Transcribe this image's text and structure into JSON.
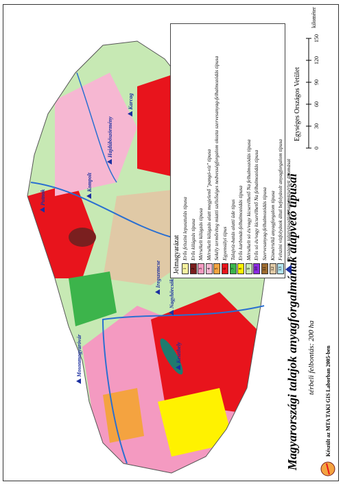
{
  "title": "Magyarországi talajok anyagforgalmának alapvető típusai",
  "subtitle": "térbeli felbontás: 200 ha",
  "projection": "Egységes Országos Vetület",
  "scale": {
    "ticks": [
      0,
      30,
      60,
      90,
      120,
      150
    ],
    "unit": "kilométer"
  },
  "credit": "Készült az MTA TAKI GIS Laborban 2005-ben",
  "legend": {
    "title": "Jelmagyarázat",
    "items": [
      {
        "number": 1,
        "label": "Erős felszíni lepusztulás típusa",
        "color": "#f7f3a0"
      },
      {
        "number": 2,
        "label": "Erős kilúgzás típusa",
        "color": "#7a1f1f"
      },
      {
        "number": 3,
        "label": "Mérsékelt kilúgzás típusa",
        "color": "#f49ac1"
      },
      {
        "number": 4,
        "label": "Mérsékelt kilúgzás alatt megjelenő \"pangó-víz\" típusa",
        "color": "#f6b7d2"
      },
      {
        "number": 5,
        "label": "Sekély termőréteg miatti szélsőséges nedvességforgalom okozta szervesanyag-felhalmozódás típusa",
        "color": "#f4a340"
      },
      {
        "number": 6,
        "label": "Egyensúlyi típus",
        "color": "#e8141c"
      },
      {
        "number": 7,
        "label": "Talajvíz-hatás alatti üde típus",
        "color": "#3cb44b"
      },
      {
        "number": 8,
        "label": "Erős karbonát-felhalmozódás típusa",
        "color": "#fff200"
      },
      {
        "number": 9,
        "label": "Mérsékelt só és/vagy kicserélhető Na felhalmozódás típusa",
        "color": "#c7e9b4"
      },
      {
        "number": 10,
        "label": "Erős só és/vagy kicserélhető Na felhalmozódás típusa",
        "color": "#8b2be2"
      },
      {
        "number": 11,
        "label": "Szervesanyag-felhalmozódás típusa",
        "color": "#9c6b30"
      },
      {
        "number": 12,
        "label": "Kismértékű anyagforgalom típusa",
        "color": "#e0c9a6"
      },
      {
        "number": 13,
        "label": "Felszíni vízfolyások által befolyásolt anyagforgalom típusa",
        "color": "#b3e5f0"
      }
    ],
    "station_note": "Országos talajvizsgálati tartamkísérleti állomásai"
  },
  "cities": [
    {
      "name": "Mosonmagyaróvár",
      "color": "#1b2fa0"
    },
    {
      "name": "Putnok",
      "color": "#1b2fa0"
    },
    {
      "name": "Kompolt",
      "color": "#1b2fa0"
    },
    {
      "name": "Hajdúböszörmény",
      "color": "#1b2fa0"
    },
    {
      "name": "Karcag",
      "color": "#1b2fa0"
    },
    {
      "name": "Keszthely",
      "color": "#1b2fa0"
    },
    {
      "name": "Nagyhörcsök",
      "color": "#1b2fa0"
    },
    {
      "name": "Iregszemcse",
      "color": "#1b2fa0"
    }
  ]
}
